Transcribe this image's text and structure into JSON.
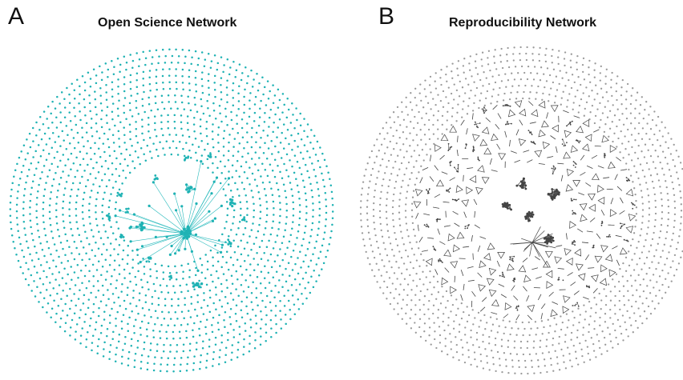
{
  "panels": [
    {
      "letter": "A",
      "title": "Open Science Network",
      "node_color": "#1fb2b4",
      "edge_color": "#25b9bb"
    },
    {
      "letter": "B",
      "title": "Reproducibility Network",
      "node_color": "#9a9a9a",
      "edge_color": "#444444"
    }
  ]
}
